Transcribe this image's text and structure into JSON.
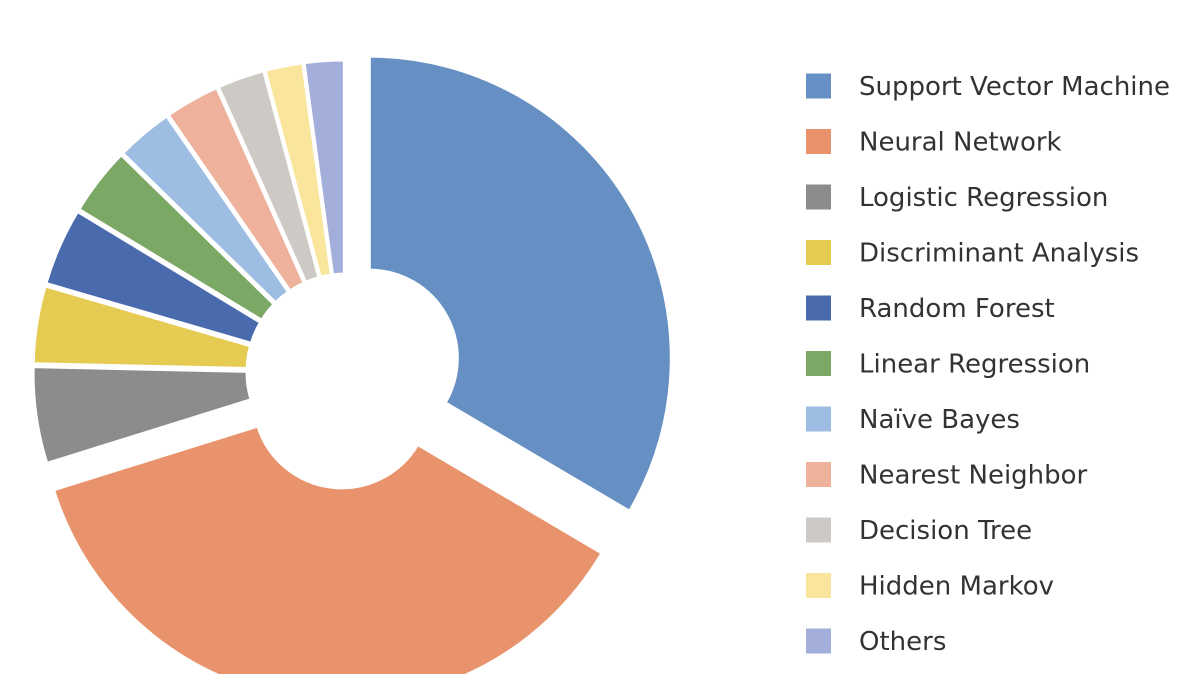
{
  "chart_data": {
    "type": "pie",
    "variant": "donut",
    "legend_position": "right",
    "slices": [
      {
        "label": "Support Vector Machine",
        "value": 33.0,
        "color": "#6690C3",
        "exploded": true
      },
      {
        "label": "Neural Network",
        "value": 36.2,
        "color": "#E8936C",
        "exploded": true
      },
      {
        "label": "Logistic Regression",
        "value": 5.1,
        "color": "#8C8C8C",
        "exploded": true
      },
      {
        "label": "Discriminant Analysis",
        "value": 4.1,
        "color": "#E6CB53",
        "exploded": true
      },
      {
        "label": "Random Forest",
        "value": 4.1,
        "color": "#4A6AAE",
        "exploded": true
      },
      {
        "label": "Linear Regression",
        "value": 3.6,
        "color": "#7BA865",
        "exploded": true
      },
      {
        "label": "Naïve Bayes",
        "value": 3.0,
        "color": "#9DBDE3",
        "exploded": true
      },
      {
        "label": "Nearest Neighbor",
        "value": 2.9,
        "color": "#EDB19C",
        "exploded": true
      },
      {
        "label": "Decision Tree",
        "value": 2.5,
        "color": "#CDCAC6",
        "exploded": true
      },
      {
        "label": "Hidden Markov",
        "value": 2.0,
        "color": "#F9E69C",
        "exploded": true
      },
      {
        "label": "Others",
        "value": 2.1,
        "color": "#A4AEDB",
        "exploded": true
      }
    ]
  }
}
